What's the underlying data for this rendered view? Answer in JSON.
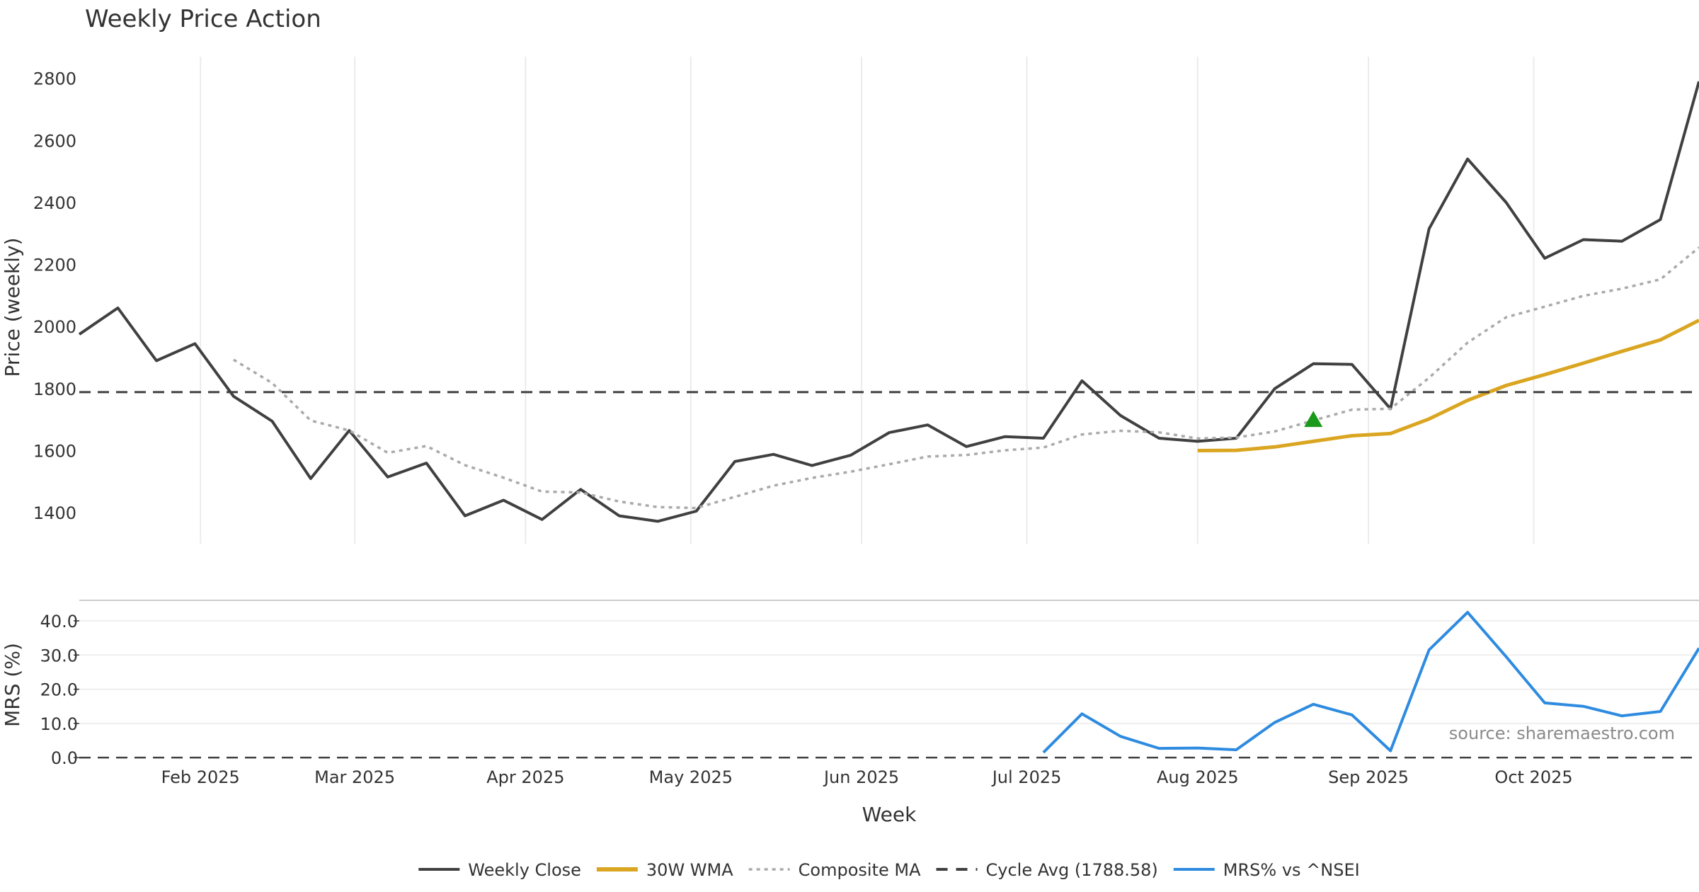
{
  "chart_data": {
    "title": "Weekly Price Action",
    "xlabel": "Week",
    "source_note": "source: sharemaestro.com",
    "x": [
      "2025-01-10",
      "2025-01-17",
      "2025-01-24",
      "2025-01-31",
      "2025-02-07",
      "2025-02-14",
      "2025-02-21",
      "2025-02-28",
      "2025-03-07",
      "2025-03-14",
      "2025-03-21",
      "2025-03-28",
      "2025-04-04",
      "2025-04-11",
      "2025-04-18",
      "2025-04-25",
      "2025-05-02",
      "2025-05-09",
      "2025-05-16",
      "2025-05-23",
      "2025-05-30",
      "2025-06-06",
      "2025-06-13",
      "2025-06-20",
      "2025-06-27",
      "2025-07-04",
      "2025-07-11",
      "2025-07-18",
      "2025-07-25",
      "2025-08-01",
      "2025-08-08",
      "2025-08-15",
      "2025-08-22",
      "2025-08-29",
      "2025-09-05",
      "2025-09-12",
      "2025-09-19",
      "2025-09-26",
      "2025-10-03",
      "2025-10-10",
      "2025-10-17",
      "2025-10-24",
      "2025-10-31"
    ],
    "x_ticks": [
      {
        "date": "2025-02-01",
        "label": "Feb 2025"
      },
      {
        "date": "2025-03-01",
        "label": "Mar 2025"
      },
      {
        "date": "2025-04-01",
        "label": "Apr 2025"
      },
      {
        "date": "2025-05-01",
        "label": "May 2025"
      },
      {
        "date": "2025-06-01",
        "label": "Jun 2025"
      },
      {
        "date": "2025-07-01",
        "label": "Jul 2025"
      },
      {
        "date": "2025-08-01",
        "label": "Aug 2025"
      },
      {
        "date": "2025-09-01",
        "label": "Sep 2025"
      },
      {
        "date": "2025-10-01",
        "label": "Oct 2025"
      }
    ],
    "panels": [
      {
        "type": "line",
        "ylabel": "Price (weekly)",
        "ylim": [
          1300,
          2870
        ],
        "yticks": [
          1400,
          1600,
          1800,
          2000,
          2200,
          2400,
          2600,
          2800
        ],
        "grid": "vertical",
        "series": [
          {
            "name": "Weekly Close",
            "color": "#404040",
            "style": "solid",
            "values": [
              1975,
              2060,
              1890,
              1945,
              1775,
              1695,
              1510,
              1665,
              1515,
              1560,
              1390,
              1440,
              1378,
              1475,
              1390,
              1372,
              1405,
              1565,
              1588,
              1552,
              1585,
              1658,
              1683,
              1613,
              1645,
              1640,
              1825,
              1713,
              1640,
              1630,
              1640,
              1800,
              1880,
              1878,
              1735,
              2315,
              2540,
              2400,
              2220,
              2280,
              2275,
              2345,
              2790
            ]
          },
          {
            "name": "30W WMA",
            "color": "#DAA520",
            "style": "solid",
            "values": [
              null,
              null,
              null,
              null,
              null,
              null,
              null,
              null,
              null,
              null,
              null,
              null,
              null,
              null,
              null,
              null,
              null,
              null,
              null,
              null,
              null,
              null,
              null,
              null,
              null,
              null,
              null,
              null,
              null,
              1600,
              1601,
              1612,
              1630,
              1648,
              1655,
              1702,
              1762,
              1810,
              1845,
              1882,
              1920,
              1957,
              2020
            ]
          },
          {
            "name": "Composite MA",
            "color": "#AAAAAA",
            "style": "dotted",
            "values": [
              null,
              null,
              null,
              null,
              1893,
              1818,
              1697,
              1665,
              1593,
              1615,
              1553,
              1513,
              1468,
              1465,
              1436,
              1418,
              1415,
              1451,
              1487,
              1512,
              1532,
              1556,
              1581,
              1586,
              1601,
              1610,
              1652,
              1664,
              1659,
              1639,
              1642,
              1662,
              1697,
              1732,
              1735,
              1835,
              1948,
              2030,
              2064,
              2099,
              2122,
              2152,
              2255
            ]
          },
          {
            "name": "Cycle Avg (1788.58)",
            "color": "#404040",
            "style": "dashed",
            "constant": 1788.58
          }
        ],
        "markers": [
          {
            "kind": "triangle-up",
            "color": "#1a9a1a",
            "week": "2025-08-22",
            "value": 1700
          }
        ]
      },
      {
        "type": "line",
        "ylabel": "MRS (%)",
        "ylim": [
          -1,
          46
        ],
        "yticks": [
          "0.0",
          "10.0",
          "20.0",
          "30.0",
          "40.0"
        ],
        "grid": "horizontal",
        "baseline": 0,
        "series": [
          {
            "name": "MRS% vs ^NSEI",
            "color": "#2E8BE0",
            "style": "solid",
            "values": [
              null,
              null,
              null,
              null,
              null,
              null,
              null,
              null,
              null,
              null,
              null,
              null,
              null,
              null,
              null,
              null,
              null,
              null,
              null,
              null,
              null,
              null,
              null,
              null,
              null,
              1.5,
              12.8,
              6.2,
              2.7,
              2.8,
              2.3,
              10.3,
              15.6,
              12.5,
              2.0,
              31.5,
              42.5,
              29.5,
              16.0,
              15.0,
              12.2,
              13.5,
              32.0
            ]
          }
        ]
      }
    ],
    "legend": {
      "placement": "bottom-center",
      "entries": [
        "Weekly Close",
        "30W WMA",
        "Composite MA",
        "Cycle Avg (1788.58)",
        "MRS% vs ^NSEI"
      ]
    }
  }
}
